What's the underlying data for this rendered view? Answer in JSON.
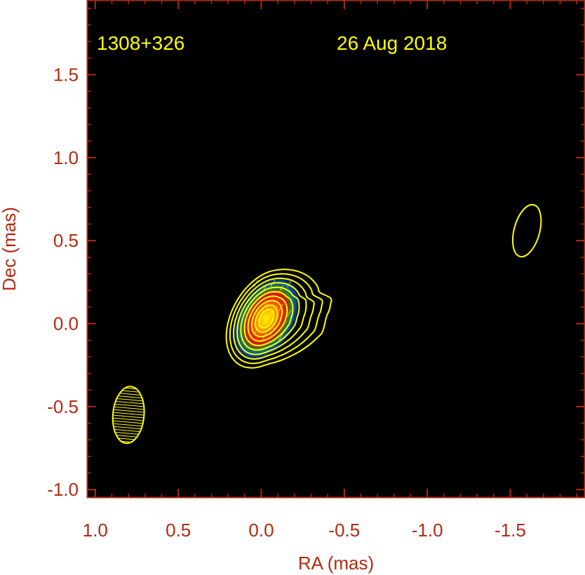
{
  "chart_data": {
    "type": "heatmap",
    "source_name": "1308+326",
    "observation_date": "26 Aug 2018",
    "xlabel": "RA (mas)",
    "ylabel": "Dec (mas)",
    "xlim": [
      1.05,
      -1.95
    ],
    "ylim": [
      -1.05,
      1.95
    ],
    "x_ticks": [
      1.0,
      0.5,
      0.0,
      -0.5,
      -1.0,
      -1.5
    ],
    "x_tick_labels": [
      "1.0",
      "0.5",
      "0.0",
      "-0.5",
      "-1.0",
      "-1.5"
    ],
    "y_ticks": [
      1.5,
      1.0,
      0.5,
      0.0,
      -0.5,
      -1.0
    ],
    "y_tick_labels": [
      "1.5",
      "1.0",
      "0.5",
      "0.0",
      "-0.5",
      "-1.0"
    ],
    "core_component": {
      "ra": -0.03,
      "dec": 0.03
    },
    "restoring_beam": {
      "ra": 0.8,
      "dec": -0.55,
      "major_mas": 0.29,
      "minor_mas": 0.15,
      "pa_deg": 5
    },
    "isolated_contour": {
      "ra": -1.6,
      "dec": 0.56,
      "width_mas": 0.14,
      "height_mas": 0.28
    },
    "contour_levels": 10,
    "colors": {
      "background": "#000000",
      "frame": "#b22a12",
      "labels": "#b22a12",
      "contours": "#ffff00",
      "annotation_text": "#ffff00"
    }
  }
}
